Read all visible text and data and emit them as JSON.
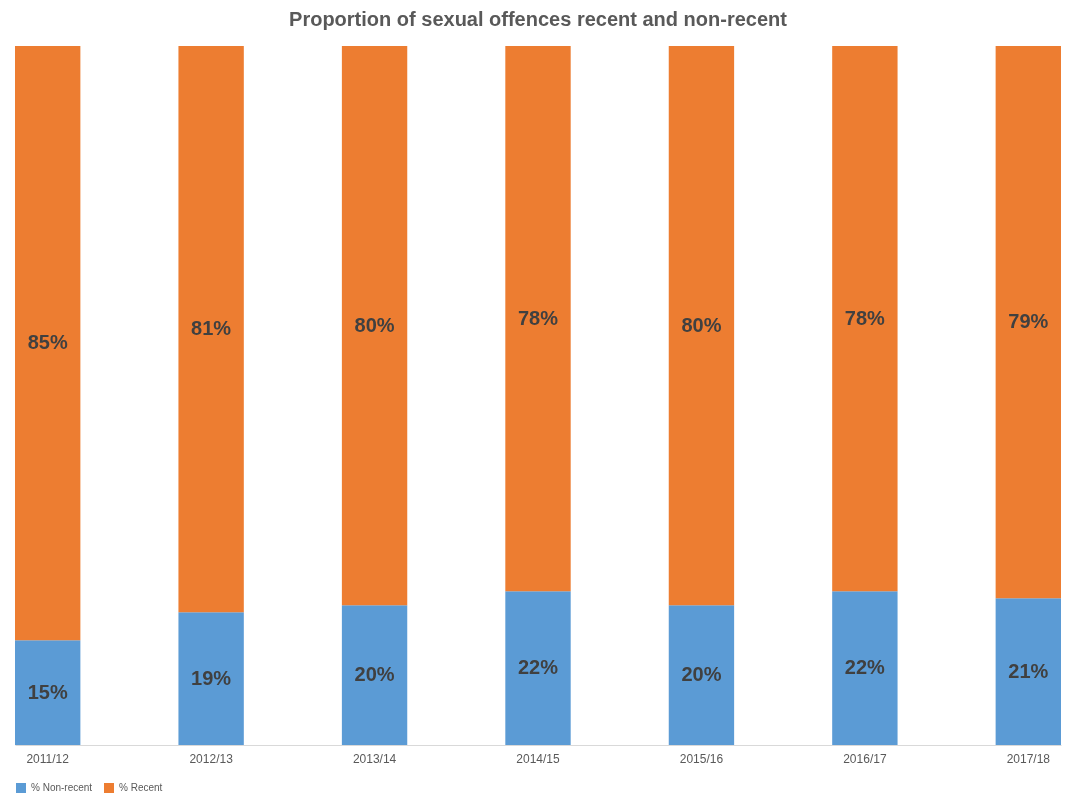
{
  "chart_data": {
    "type": "bar",
    "title": "Proportion of sexual offences recent and non-recent",
    "categories": [
      "2011/12",
      "2012/13",
      "2013/14",
      "2014/15",
      "2015/16",
      "2016/17",
      "2017/18"
    ],
    "stacked": true,
    "legend": "bottom",
    "grid": false,
    "series": [
      {
        "name": "% Non-recent",
        "color": "#5b9bd5",
        "values": [
          15,
          19,
          20,
          22,
          20,
          22,
          21
        ],
        "value_labels": [
          "15%",
          "19%",
          "20%",
          "22%",
          "20%",
          "22%",
          "21%"
        ]
      },
      {
        "name": "% Recent",
        "color": "#ed7d31",
        "values": [
          85,
          81,
          80,
          78,
          80,
          78,
          79
        ],
        "value_labels": [
          "85%",
          "81%",
          "80%",
          "78%",
          "80%",
          "78%",
          "79%"
        ]
      }
    ]
  }
}
